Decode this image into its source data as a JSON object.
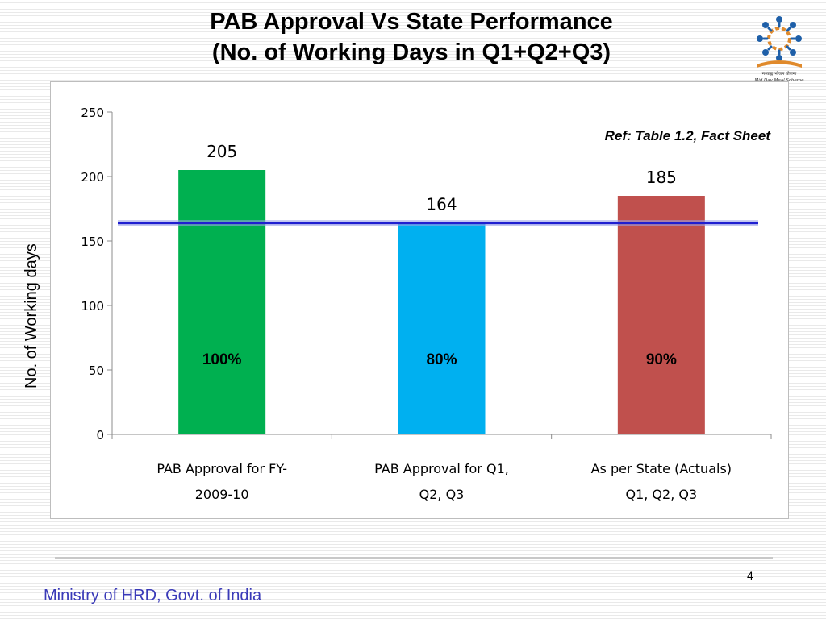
{
  "slide": {
    "title_line1": "PAB Approval  Vs State Performance",
    "title_line2": "(No. of Working Days in Q1+Q2+Q3)",
    "reference": "Ref: Table 1.2, Fact Sheet",
    "page_number": "4",
    "footer": "Ministry of HRD, Govt. of India",
    "logo_caption_1": "मध्याह्न भोजन योजना",
    "logo_caption_2": "Mid Day Meal Scheme"
  },
  "chart_data": {
    "type": "bar",
    "title": "",
    "xlabel": "",
    "ylabel": "No. of Working days",
    "ylim": [
      0,
      250
    ],
    "yticks": [
      0,
      50,
      100,
      150,
      200,
      250
    ],
    "categories": [
      [
        "PAB Approval for FY-",
        "2009-10"
      ],
      [
        "PAB Approval for Q1,",
        "Q2, Q3"
      ],
      [
        "As per State (Actuals)",
        "Q1, Q2, Q3"
      ]
    ],
    "values": [
      205,
      164,
      185
    ],
    "value_labels": [
      "205",
      "164",
      "185"
    ],
    "percent_labels": [
      "100%",
      "80%",
      "90%"
    ],
    "percent_label_y": 55,
    "bar_colors": [
      "#00b050",
      "#00b0f0",
      "#c0504d"
    ],
    "reference_line": {
      "value": 164,
      "color": "#1f1fd0"
    },
    "grid": false,
    "legend": "none"
  }
}
